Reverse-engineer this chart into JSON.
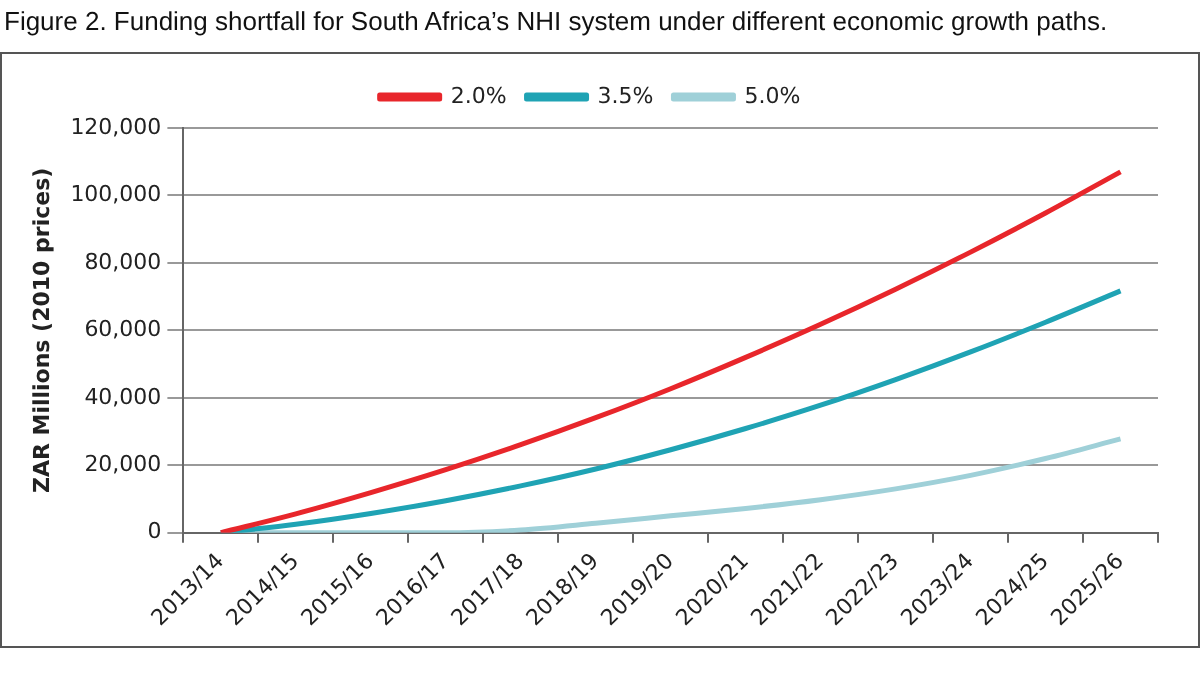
{
  "chart_data": {
    "type": "line",
    "title": "Figure 2. Funding shortfall for South Africa’s NHI system under different economic growth paths.",
    "ylabel": "ZAR Millions (2010 prices)",
    "categories": [
      "2013/14",
      "2014/15",
      "2015/16",
      "2016/17",
      "2017/18",
      "2018/19",
      "2019/20",
      "2020/21",
      "2021/22",
      "2022/23",
      "2023/24",
      "2024/25",
      "2025/26"
    ],
    "series": [
      {
        "name": "2.0%",
        "color": "#e8262b",
        "values": [
          0,
          5600,
          11900,
          18700,
          26100,
          34100,
          42700,
          52000,
          61800,
          72200,
          83200,
          94800,
          107000
        ]
      },
      {
        "name": "3.5%",
        "color": "#1fa3b4",
        "values": [
          0,
          2500,
          5700,
          9500,
          13900,
          18900,
          24600,
          30900,
          37800,
          45400,
          53600,
          62400,
          71700
        ]
      },
      {
        "name": "5.0%",
        "color": "#9fd0d8",
        "values": [
          0,
          0,
          0,
          0,
          800,
          2800,
          5000,
          7200,
          9800,
          13000,
          17000,
          22000,
          27800
        ]
      }
    ],
    "ylim": [
      0,
      120000
    ],
    "yticks": [
      0,
      {
        "value": 20000,
        "label": "20,000"
      },
      {
        "value": 40000,
        "label": "40,000"
      },
      {
        "value": 60000,
        "label": "60,000"
      },
      {
        "value": 80000,
        "label": "80,000"
      },
      {
        "value": 100000,
        "label": "100,000"
      },
      {
        "value": 120000,
        "label": "120,000"
      }
    ],
    "grid": "y",
    "legend": "top",
    "marker": "none",
    "line_style": "solid"
  }
}
